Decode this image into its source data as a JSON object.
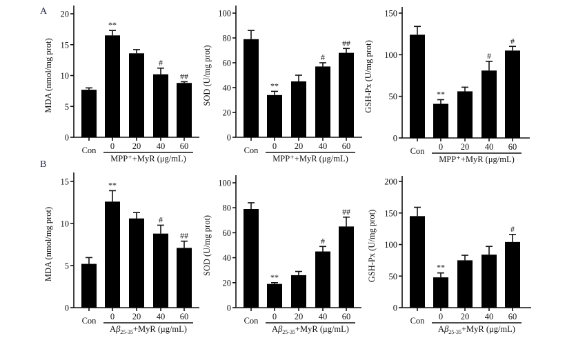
{
  "figure": {
    "row_labels": [
      "A",
      "B"
    ]
  },
  "chart_data": [
    {
      "type": "bar",
      "row": "A",
      "title": "",
      "ylabel": "MDA (nmol/mg prot)",
      "ylim": [
        0,
        20
      ],
      "yticks": [
        0,
        5,
        10,
        15,
        20
      ],
      "categories": [
        "Con",
        "0",
        "20",
        "40",
        "60"
      ],
      "group_label": "MPP⁺+MyR (μg/mL)",
      "values": [
        7.7,
        16.5,
        13.6,
        10.2,
        8.8
      ],
      "errors": [
        0.3,
        0.8,
        0.6,
        1.0,
        0.2
      ],
      "significance": [
        "",
        "**",
        "",
        "#",
        "##"
      ]
    },
    {
      "type": "bar",
      "row": "A",
      "title": "",
      "ylabel": "SOD (U/mg prot)",
      "ylim": [
        0,
        100
      ],
      "yticks": [
        0,
        20,
        40,
        60,
        80,
        100
      ],
      "categories": [
        "Con",
        "0",
        "20",
        "40",
        "60"
      ],
      "group_label": "MPP⁺+MyR (μg/mL)",
      "values": [
        79,
        34,
        45,
        57,
        68
      ],
      "errors": [
        7,
        3,
        5,
        3,
        3.5
      ],
      "significance": [
        "",
        "**",
        "",
        "#",
        "##"
      ]
    },
    {
      "type": "bar",
      "row": "A",
      "title": "",
      "ylabel": "GSH-Px (U/mg prot)",
      "ylim": [
        0,
        150
      ],
      "yticks": [
        0,
        50,
        100,
        150
      ],
      "categories": [
        "Con",
        "0",
        "20",
        "40",
        "60"
      ],
      "group_label": "MPP⁺+MyR (μg/mL)",
      "values": [
        124,
        41,
        56,
        81,
        105
      ],
      "errors": [
        10,
        5,
        5,
        11,
        5
      ],
      "significance": [
        "",
        "**",
        "",
        "#",
        "#"
      ]
    },
    {
      "type": "bar",
      "row": "B",
      "title": "",
      "ylabel": "MDA (nmol/mg prot)",
      "ylim": [
        0,
        15
      ],
      "yticks": [
        0,
        5,
        10,
        15
      ],
      "categories": [
        "Con",
        "0",
        "20",
        "40",
        "60"
      ],
      "group_label_main": "A",
      "group_label_beta": "β",
      "group_label_sub": "25-35",
      "group_label_rest": "+MyR (μg/mL)",
      "values": [
        5.2,
        12.6,
        10.6,
        8.8,
        7.1
      ],
      "errors": [
        0.75,
        1.3,
        0.7,
        1.0,
        0.8
      ],
      "significance": [
        "",
        "**",
        "",
        "#",
        "##"
      ]
    },
    {
      "type": "bar",
      "row": "B",
      "title": "",
      "ylabel": "SOD (U/mg prot)",
      "ylim": [
        0,
        100
      ],
      "yticks": [
        0,
        20,
        40,
        60,
        80,
        100
      ],
      "categories": [
        "Con",
        "0",
        "20",
        "40",
        "60"
      ],
      "group_label_main": "A",
      "group_label_beta": "β",
      "group_label_sub": "25-35",
      "group_label_rest": "+MyR (μg/mL)",
      "values": [
        79,
        19,
        26,
        45,
        65
      ],
      "errors": [
        5,
        1,
        3,
        4,
        7.5
      ],
      "significance": [
        "",
        "**",
        "",
        "#",
        "##"
      ]
    },
    {
      "type": "bar",
      "row": "B",
      "title": "",
      "ylabel": "GSH-Px (U/mg prot)",
      "ylim": [
        0,
        200
      ],
      "yticks": [
        0,
        50,
        100,
        150,
        200
      ],
      "categories": [
        "Con",
        "0",
        "20",
        "40",
        "60"
      ],
      "group_label_main": "A",
      "group_label_beta": "β",
      "group_label_sub": "25-35",
      "group_label_rest": "+MyR (μg/mL)",
      "values": [
        145,
        48,
        75,
        84,
        104
      ],
      "errors": [
        14,
        7,
        8,
        13,
        12
      ],
      "significance": [
        "",
        "**",
        "",
        "",
        "#"
      ]
    }
  ]
}
